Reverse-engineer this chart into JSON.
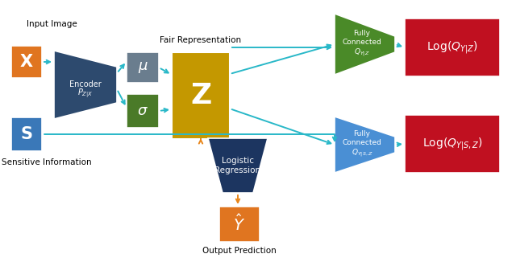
{
  "bg_color": "#ffffff",
  "arrow_color": "#29b8c8",
  "orange_arrow_color": "#e8861a",
  "colors": {
    "orange": "#e07520",
    "dark_blue": "#2d4a6e",
    "gray_mu": "#6a7d8e",
    "green_sigma": "#4a7a28",
    "gold": "#c49800",
    "navy": "#1c3560",
    "blue_fc": "#4a8fd4",
    "green_fc": "#4a8a28",
    "red": "#c01020",
    "blue_s": "#3a78b8"
  },
  "text": {
    "input_image": "Input Image",
    "X": "X",
    "S": "S",
    "sensitive": "Sensitive Information",
    "encoder_line1": "Encoder",
    "encoder_line2": "$P_{Z|X}$",
    "mu": "$\\mu$",
    "sigma": "$\\sigma$",
    "Z": "Z",
    "fair_rep": "Fair Representation",
    "fc1_line1": "Fully",
    "fc1_line2": "Connected",
    "fc1_line3": "$Q_{Y|Z}$",
    "fc2_line1": "Fully",
    "fc2_line2": "Connected",
    "fc2_line3": "$Q_{Y|S,Z}$",
    "log1": "Log$(Q_{Y|Z})$",
    "log2": "Log$(Q_{Y|S,Z})$",
    "logistic_line1": "Logistic",
    "logistic_line2": "Regression",
    "yhat": "$\\hat{Y}$",
    "output_pred": "Output Prediction"
  }
}
